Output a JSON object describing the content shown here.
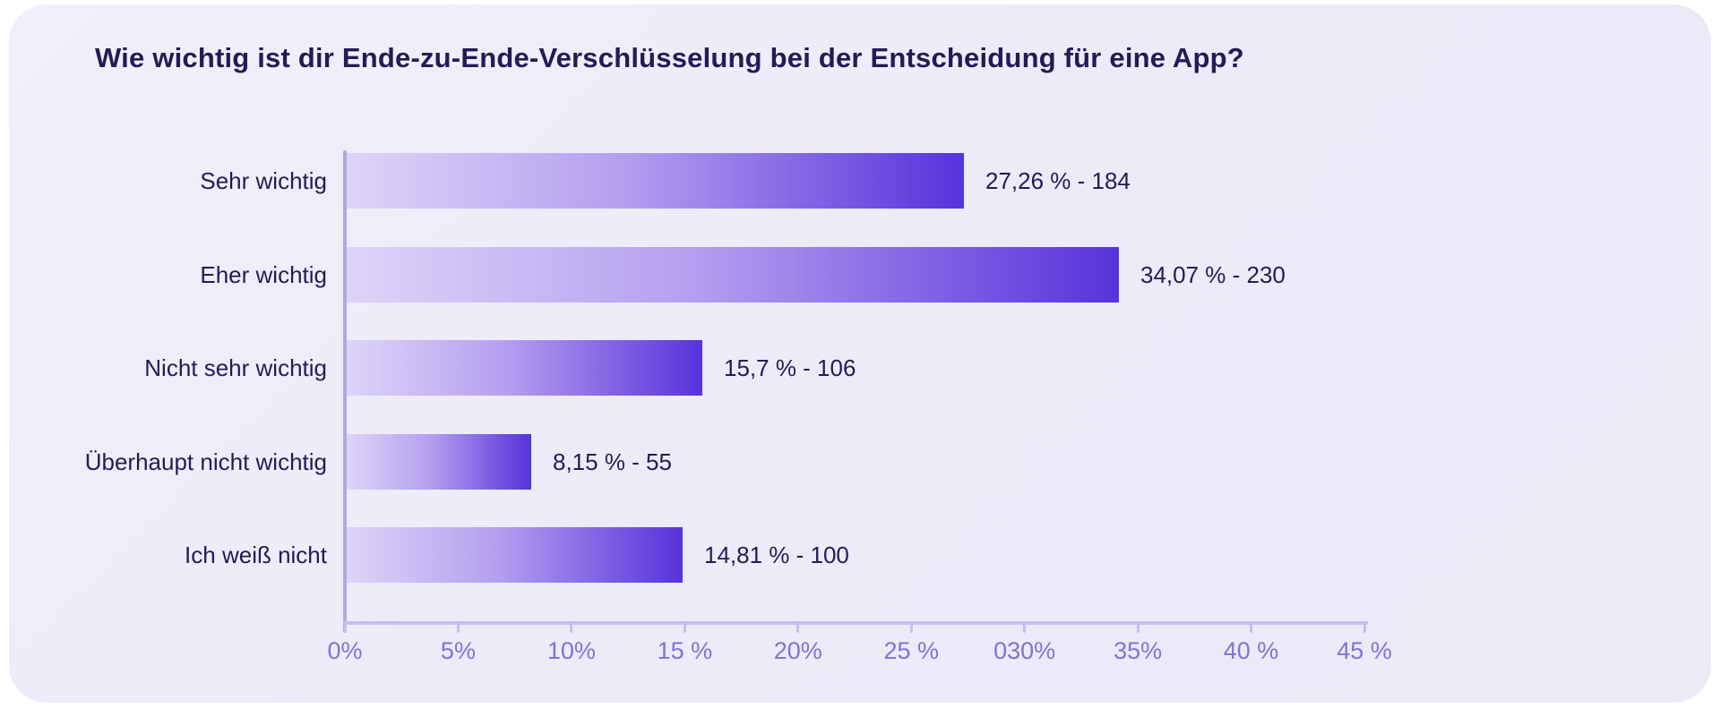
{
  "chart_data": {
    "type": "bar",
    "orientation": "horizontal",
    "title": "Wie wichtig ist dir Ende-zu-Ende-Verschlüsselung bei der Entscheidung für eine App?",
    "categories": [
      "Sehr wichtig",
      "Eher wichtig",
      "Nicht sehr wichtig",
      "Überhaupt nicht wichtig",
      "Ich weiß nicht"
    ],
    "values": [
      27.26,
      34.07,
      15.7,
      8.15,
      14.81
    ],
    "counts": [
      184,
      230,
      106,
      55,
      100
    ],
    "value_labels": [
      "27,26 % - 184",
      "34,07 % - 230",
      "15,7 % - 106",
      "8,15 % - 55",
      "14,81 % - 100"
    ],
    "x_tick_values": [
      0,
      5,
      10,
      15,
      20,
      25,
      30,
      35,
      40,
      45
    ],
    "x_tick_labels": [
      "0%",
      "5%",
      "10%",
      "15 %",
      "20%",
      "25 %",
      "030%",
      "35%",
      "40 %",
      "45 %"
    ],
    "xlim": [
      0,
      45
    ],
    "grid": false,
    "legend": false,
    "colors": {
      "bar_gradient_start": "#ded4f8",
      "bar_gradient_end": "#5633db",
      "axis_line": "#c7bdf1",
      "y_axis_line": "#b2a6e9",
      "tick_text": "#8570d2",
      "text": "#221c55",
      "card_background": "#edebf8",
      "page_background": "#ffffff"
    }
  }
}
